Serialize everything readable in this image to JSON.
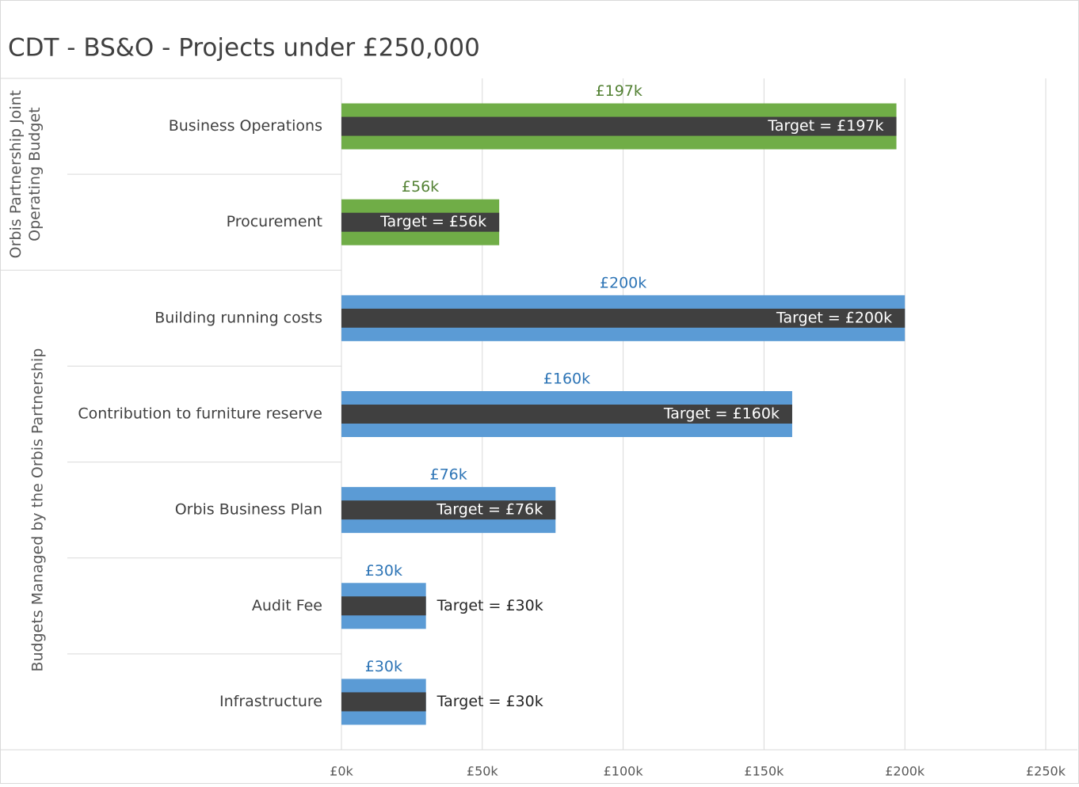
{
  "chart_data": {
    "type": "bar",
    "title": "CDT - BS&O - Projects under £250,000",
    "orientation": "horizontal",
    "groups": [
      {
        "name": "Orbis Partnership Joint Operating Budget",
        "color": "#70ad47",
        "label_color": "#548235",
        "categories": [
          "Business Operations",
          "Procurement"
        ],
        "values": [
          197000,
          56000
        ],
        "value_labels": [
          "£197k",
          "£56k"
        ],
        "targets": [
          197000,
          56000
        ],
        "target_labels": [
          "Target =  £197k",
          "Target =  £56k"
        ]
      },
      {
        "name": "Budgets Managed by the Orbis Partnership",
        "color": "#5b9bd5",
        "label_color": "#2e75b6",
        "categories": [
          "Building running costs",
          "Contribution to furniture reserve",
          "Orbis Business Plan",
          "Audit Fee",
          "Infrastructure"
        ],
        "values": [
          200000,
          160000,
          76000,
          30000,
          30000
        ],
        "value_labels": [
          "£200k",
          "£160k",
          "£76k",
          "£30k",
          "£30k"
        ],
        "targets": [
          200000,
          160000,
          76000,
          30000,
          30000
        ],
        "target_labels": [
          "Target =  £200k",
          "Target =  £160k",
          "Target =  £76k",
          "Target =  £30k",
          "Target =  £30k"
        ]
      }
    ],
    "target_color": "#404040",
    "xlim": [
      0,
      250000
    ],
    "xticks": [
      {
        "value": 0,
        "label": "£0k"
      },
      {
        "value": 50000,
        "label": "£50k"
      },
      {
        "value": 100000,
        "label": "£100k"
      },
      {
        "value": 150000,
        "label": "£150k"
      },
      {
        "value": 200000,
        "label": "£200k"
      },
      {
        "value": 250000,
        "label": "£250k"
      }
    ],
    "grid": true
  }
}
